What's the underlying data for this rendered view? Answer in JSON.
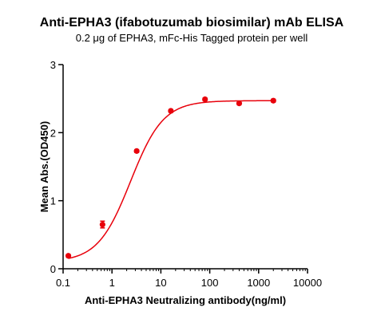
{
  "chart_data": {
    "type": "scatter",
    "title": "Anti-EPHA3 (ifabotuzumab biosimilar) mAb ELISA",
    "subtitle": "0.2 μg of EPHA3, mFc-His Tagged protein per well",
    "xlabel": "Anti-EPHA3 Neutralizing antibody(ng/ml)",
    "ylabel": "Mean Abs.(OD450)",
    "x_scale": "log",
    "xlim": [
      0.1,
      10000
    ],
    "ylim": [
      0,
      3
    ],
    "x_ticks": [
      "0.1",
      "1",
      "10",
      "100",
      "1000",
      "10000"
    ],
    "y_ticks": [
      "0",
      "1",
      "2",
      "3"
    ],
    "grid": false,
    "series": [
      {
        "points": [
          {
            "x": 0.128,
            "y": 0.19,
            "err": 0.02
          },
          {
            "x": 0.64,
            "y": 0.65,
            "err": 0.05
          },
          {
            "x": 3.2,
            "y": 1.73,
            "err": 0.02
          },
          {
            "x": 16,
            "y": 2.32,
            "err": 0.02
          },
          {
            "x": 80,
            "y": 2.49,
            "err": 0.02
          },
          {
            "x": 400,
            "y": 2.43,
            "err": 0.02
          },
          {
            "x": 2000,
            "y": 2.47,
            "err": 0.02
          }
        ],
        "fit": {
          "model": "4PL",
          "bottom": 0.1,
          "top": 2.47,
          "ec50": 2.4,
          "hill": 1.3
        }
      }
    ],
    "colors": {
      "series": "#e8000b",
      "axis": "#000000"
    }
  }
}
